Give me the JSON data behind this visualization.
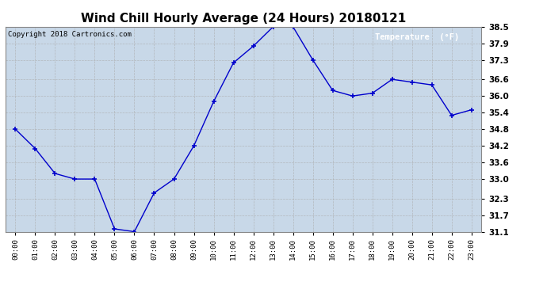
{
  "title": "Wind Chill Hourly Average (24 Hours) 20180121",
  "copyright_text": "Copyright 2018 Cartronics.com",
  "legend_label": "Temperature  (°F)",
  "hours": [
    0,
    1,
    2,
    3,
    4,
    5,
    6,
    7,
    8,
    9,
    10,
    11,
    12,
    13,
    14,
    15,
    16,
    17,
    18,
    19,
    20,
    21,
    22,
    23
  ],
  "x_labels": [
    "00:00",
    "01:00",
    "02:00",
    "03:00",
    "04:00",
    "05:00",
    "06:00",
    "07:00",
    "08:00",
    "09:00",
    "10:00",
    "11:00",
    "12:00",
    "13:00",
    "14:00",
    "15:00",
    "16:00",
    "17:00",
    "18:00",
    "19:00",
    "20:00",
    "21:00",
    "22:00",
    "23:00"
  ],
  "values": [
    34.8,
    34.1,
    33.2,
    33.0,
    33.0,
    31.2,
    31.1,
    32.5,
    33.0,
    34.2,
    35.8,
    37.2,
    37.8,
    38.5,
    38.5,
    37.3,
    36.2,
    36.0,
    36.1,
    36.6,
    36.5,
    36.4,
    35.3,
    35.5
  ],
  "ylim": [
    31.1,
    38.5
  ],
  "yticks": [
    31.1,
    31.7,
    32.3,
    33.0,
    33.6,
    34.2,
    34.8,
    35.4,
    36.0,
    36.6,
    37.3,
    37.9,
    38.5
  ],
  "line_color": "#0000cc",
  "marker": "+",
  "marker_size": 5,
  "background_color": "#ffffff",
  "plot_bg_color": "#c8d8e8",
  "grid_color": "#aaaaaa",
  "title_fontsize": 11,
  "legend_bg": "#0000cc",
  "legend_text_color": "#ffffff",
  "fig_width": 6.9,
  "fig_height": 3.75,
  "fig_dpi": 100
}
